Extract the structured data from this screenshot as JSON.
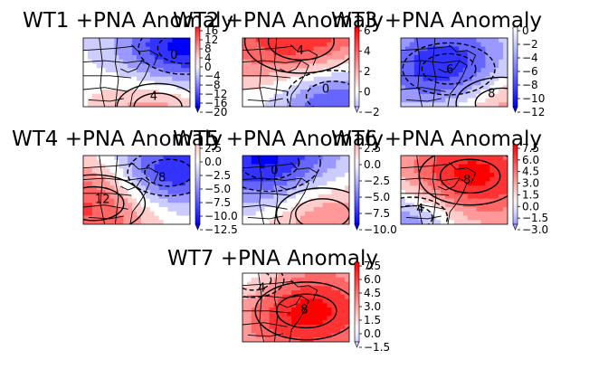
{
  "chart_data": [
    {
      "type": "heatmap",
      "title": "WT1 +PNA Anomaly",
      "colorbar": {
        "ticks": [
          "16",
          "12",
          "8",
          "4",
          "0",
          "−4",
          "−8",
          "−12",
          "−16",
          "−20"
        ],
        "min": -20,
        "max": 18
      },
      "contour_labels": [
        "0",
        "4"
      ],
      "field": {
        "centers": [
          {
            "x": 0.95,
            "y": 0.15,
            "amp": -1.0,
            "r": 0.45
          },
          {
            "x": 0.7,
            "y": 1.0,
            "amp": 0.5,
            "r": 0.4
          }
        ]
      }
    },
    {
      "type": "heatmap",
      "title": "WT2 +PNA Anomaly",
      "colorbar": {
        "ticks": [
          "6",
          "4",
          "2",
          "0",
          "−2"
        ],
        "min": -2,
        "max": 8
      },
      "contour_labels": [
        "4",
        "0"
      ],
      "field": {
        "centers": [
          {
            "x": 0.55,
            "y": 0.05,
            "amp": 1.0,
            "r": 0.55
          },
          {
            "x": 0.85,
            "y": 0.85,
            "amp": -0.9,
            "r": 0.45
          }
        ]
      }
    },
    {
      "type": "heatmap",
      "title": "WT3 +PNA Anomaly",
      "colorbar": {
        "ticks": [
          "0",
          "−2",
          "−4",
          "−6",
          "−8",
          "−10",
          "−12"
        ],
        "min": -12,
        "max": 0
      },
      "contour_labels": [
        "6",
        "8"
      ],
      "field": {
        "centers": [
          {
            "x": 0.45,
            "y": 0.45,
            "amp": -1.0,
            "r": 0.45
          },
          {
            "x": 0.95,
            "y": 0.95,
            "amp": 0.6,
            "r": 0.45
          }
        ]
      }
    },
    {
      "type": "heatmap",
      "title": "WT4 +PNA Anomaly",
      "colorbar": {
        "ticks": [
          "2.5",
          "0.0",
          "−2.5",
          "−5.0",
          "−7.5",
          "−10.0",
          "−12.5"
        ],
        "min": -12.5,
        "max": 3
      },
      "contour_labels": [
        "8",
        "12"
      ],
      "field": {
        "centers": [
          {
            "x": 0.8,
            "y": 0.25,
            "amp": -1.0,
            "r": 0.4
          },
          {
            "x": 0.1,
            "y": 0.7,
            "amp": 0.8,
            "r": 0.5
          }
        ]
      }
    },
    {
      "type": "heatmap",
      "title": "WT5 +PNA Anomaly",
      "colorbar": {
        "ticks": [
          "2.5",
          "0.0",
          "−2.5",
          "−5.0",
          "−7.5",
          "−10.0"
        ],
        "min": -10,
        "max": 3
      },
      "contour_labels": [
        "0"
      ],
      "field": {
        "centers": [
          {
            "x": 0.25,
            "y": 0.1,
            "amp": -1.0,
            "r": 0.5
          },
          {
            "x": 0.75,
            "y": 0.85,
            "amp": 0.6,
            "r": 0.45
          }
        ]
      }
    },
    {
      "type": "heatmap",
      "title": "WT6 +PNA Anomaly",
      "colorbar": {
        "ticks": [
          "7.5",
          "6.0",
          "4.5",
          "3.0",
          "1.5",
          "0.0",
          "−1.5",
          "−3.0"
        ],
        "min": -3,
        "max": 8
      },
      "contour_labels": [
        "8",
        "4"
      ],
      "field": {
        "centers": [
          {
            "x": 0.65,
            "y": 0.3,
            "amp": 1.0,
            "r": 0.5
          },
          {
            "x": 0.1,
            "y": 0.9,
            "amp": -0.6,
            "r": 0.35
          }
        ]
      }
    },
    {
      "type": "heatmap",
      "title": "WT7 +PNA Anomaly",
      "colorbar": {
        "ticks": [
          "7.5",
          "6.0",
          "4.5",
          "3.0",
          "1.5",
          "0.0",
          "−1.5"
        ],
        "min": -1.5,
        "max": 8
      },
      "contour_labels": [
        "8",
        "4"
      ],
      "field": {
        "centers": [
          {
            "x": 0.6,
            "y": 0.55,
            "amp": 1.0,
            "r": 0.5
          },
          {
            "x": 0.1,
            "y": 0.1,
            "amp": -0.3,
            "r": 0.3
          }
        ]
      }
    }
  ]
}
